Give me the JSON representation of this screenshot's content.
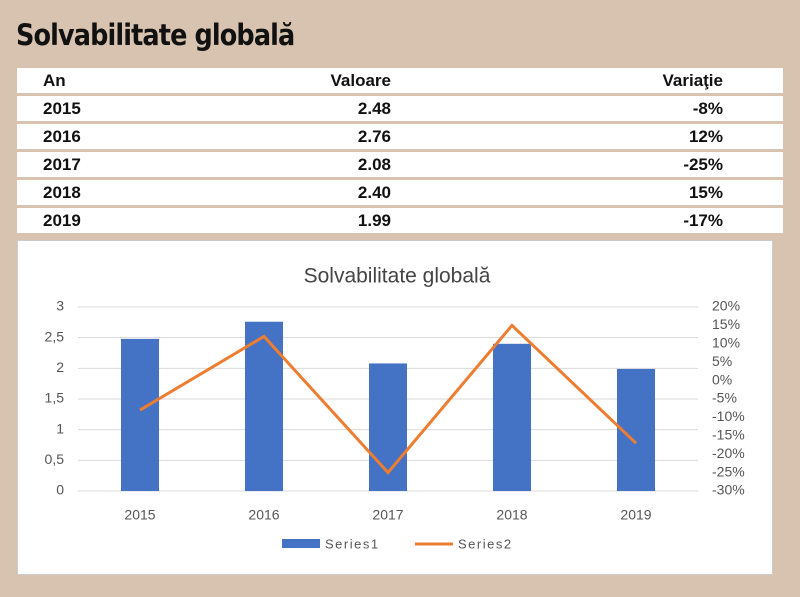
{
  "header": {
    "title": "Solvabilitate globală"
  },
  "table": {
    "header": [
      "An",
      "Valoare",
      "Variaţie"
    ],
    "rows": [
      [
        "2015",
        "2.48",
        "-8%"
      ],
      [
        "2016",
        "2.76",
        "12%"
      ],
      [
        "2017",
        "2.08",
        "-25%"
      ],
      [
        "2018",
        "2.40",
        "15%"
      ],
      [
        "2019",
        "1.99",
        "-17%"
      ]
    ]
  },
  "chart_data": {
    "type": "combo",
    "title": "Solvabilitate globală",
    "categories": [
      "2015",
      "2016",
      "2017",
      "2018",
      "2019"
    ],
    "series": [
      {
        "name": "Series1",
        "type": "bar",
        "color": "#4472c4",
        "values": [
          2.48,
          2.76,
          2.08,
          2.4,
          1.99
        ]
      },
      {
        "name": "Series2",
        "type": "line",
        "axis": "y2",
        "color": "#ed7d31",
        "values": [
          -8,
          12,
          -25,
          15,
          -17
        ]
      }
    ],
    "ylim": [
      0,
      3
    ],
    "yticks": [
      0,
      {
        "value": 0.5,
        "label": "0,5"
      },
      1,
      {
        "value": 1.5,
        "label": "1,5"
      },
      2,
      {
        "value": 2.5,
        "label": "2,5"
      },
      3
    ],
    "y2lim": [
      -30,
      20
    ],
    "y2ticks": [
      {
        "value": -30,
        "label": "-30%"
      },
      {
        "value": -25,
        "label": "-25%"
      },
      {
        "value": -20,
        "label": "-20%"
      },
      {
        "value": -15,
        "label": "-15%"
      },
      {
        "value": -10,
        "label": "-10%"
      },
      {
        "value": -5,
        "label": "-5%"
      },
      {
        "value": 0,
        "label": "0%"
      },
      {
        "value": 5,
        "label": "5%"
      },
      {
        "value": 10,
        "label": "10%"
      },
      {
        "value": 15,
        "label": "15%"
      },
      {
        "value": 20,
        "label": "20%"
      }
    ],
    "grid": true,
    "legend": "bottom"
  }
}
